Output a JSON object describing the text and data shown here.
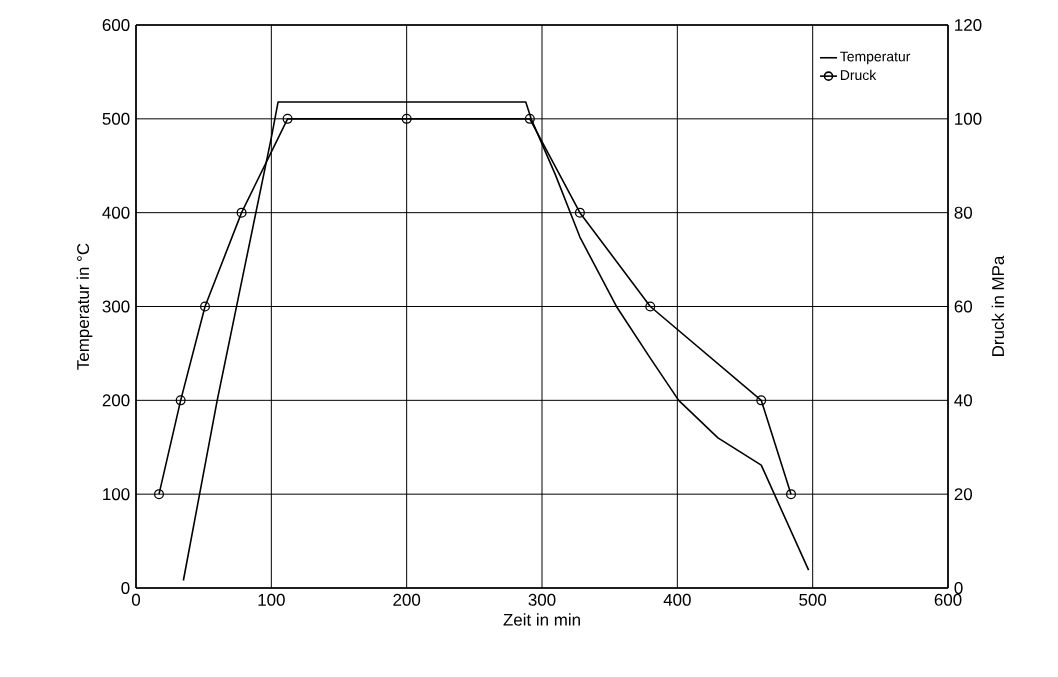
{
  "chart_data": {
    "type": "line",
    "xlabel": "Zeit in min",
    "ylabel": "Temperatur in °C",
    "y2label": "Druck in MPa",
    "xlim": [
      0,
      600
    ],
    "xticks": [
      0,
      100,
      200,
      300,
      400,
      500,
      600
    ],
    "ylim": [
      0,
      600
    ],
    "yticks": [
      0,
      100,
      200,
      300,
      400,
      500,
      600
    ],
    "y2lim": [
      0,
      120
    ],
    "y2ticks": [
      0,
      20,
      40,
      60,
      80,
      100,
      120
    ],
    "grid": true,
    "legend": "top right",
    "series": [
      {
        "name": "Temperatur",
        "color": "#000000",
        "marker": "none",
        "x": [
          35,
          60,
          80,
          100,
          105,
          288,
          292,
          310,
          328,
          355,
          380,
          401,
          430,
          462,
          497
        ],
        "values": [
          8,
          200,
          340,
          480,
          518,
          518,
          500,
          440,
          374,
          300,
          245,
          200,
          160,
          131,
          19
        ]
      },
      {
        "name": "Druck",
        "color": "#000000",
        "marker": "circle",
        "axis": "y2",
        "x": [
          17,
          33,
          51,
          78,
          112,
          200,
          291,
          328,
          380,
          462,
          484
        ],
        "values": [
          20,
          40,
          60,
          80,
          100,
          100,
          100,
          80,
          60,
          40,
          20
        ]
      }
    ]
  }
}
